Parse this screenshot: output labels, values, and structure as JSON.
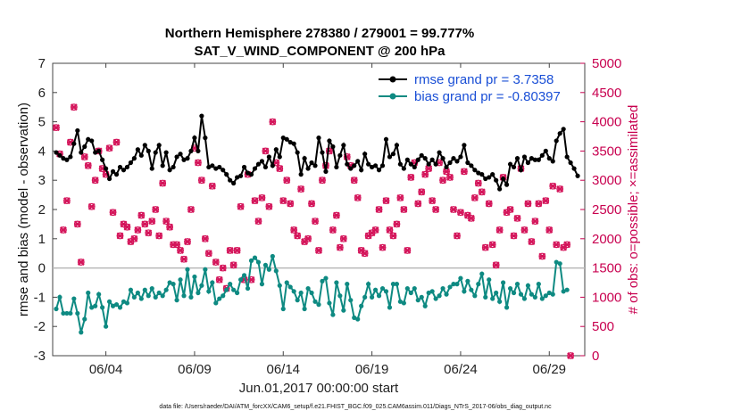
{
  "chart_data": {
    "type": "line",
    "title": "Northern Hemisphere 278380 / 279001 = 99.777%",
    "subtitle": "SAT_V_WIND_COMPONENT @ 200 hPa",
    "xlabel": "Jun.01,2017 00:00:00 start",
    "ylabel": "rmse and bias (model - observation)",
    "y2label": "# of obs: o=possible; ×=assimilated",
    "xlim": [
      0,
      30
    ],
    "ylim": [
      -3,
      7
    ],
    "y2lim": [
      0,
      5000
    ],
    "x_ticks": [
      3,
      8,
      13,
      18,
      23,
      28
    ],
    "x_tick_labels": [
      "06/04",
      "06/09",
      "06/14",
      "06/19",
      "06/24",
      "06/29"
    ],
    "y_ticks": [
      -3,
      -2,
      -1,
      0,
      1,
      2,
      3,
      4,
      5,
      6,
      7
    ],
    "y2_ticks": [
      0,
      500,
      1000,
      1500,
      2000,
      2500,
      3000,
      3500,
      4000,
      4500,
      5000
    ],
    "grid": false,
    "legend_position": "top-right",
    "series": [
      {
        "name": "rmse grand pr = 3.7358",
        "color": "#000000",
        "marker": "circle",
        "axis": "left",
        "values": [
          3.95,
          3.85,
          3.75,
          3.7,
          3.8,
          4.25,
          4.7,
          3.95,
          4.15,
          4.4,
          4.35,
          3.95,
          4.0,
          3.7,
          3.4,
          3.05,
          3.3,
          3.2,
          3.45,
          3.35,
          3.45,
          3.6,
          3.75,
          4.05,
          3.85,
          4.2,
          4.0,
          3.4,
          3.95,
          4.2,
          3.5,
          3.95,
          3.35,
          3.45,
          3.8,
          3.9,
          3.7,
          3.75,
          4.0,
          4.45,
          4.0,
          5.2,
          4.45,
          3.45,
          3.5,
          3.4,
          3.45,
          3.35,
          3.2,
          3.0,
          2.9,
          3.1,
          3.15,
          3.45,
          3.25,
          3.2,
          3.4,
          3.55,
          3.65,
          3.45,
          3.8,
          3.5,
          4.05,
          3.8,
          4.45,
          4.4,
          4.3,
          4.25,
          3.95,
          3.2,
          3.75,
          3.4,
          3.6,
          3.5,
          4.45,
          3.95,
          3.3,
          4.35,
          4.15,
          3.45,
          3.85,
          4.2,
          3.55,
          3.4,
          3.5,
          3.65,
          3.35,
          3.9,
          3.55,
          3.45,
          3.5,
          3.35,
          3.5,
          4.4,
          3.8,
          3.9,
          4.2,
          3.55,
          3.4,
          3.7,
          3.55,
          3.45,
          3.7,
          3.85,
          3.75,
          3.55,
          3.7,
          3.55,
          3.95,
          3.75,
          3.45,
          3.6,
          3.75,
          3.65,
          3.8,
          4.2,
          3.6,
          3.5,
          3.35,
          3.25,
          3.2,
          3.05,
          3.1,
          3.2,
          3.0,
          2.7,
          3.05,
          2.85,
          3.55,
          3.45,
          3.75,
          3.35,
          3.8,
          3.6,
          3.75,
          3.7,
          3.7,
          3.85,
          4.0,
          3.75,
          3.65,
          4.35,
          4.6,
          4.75,
          3.8,
          3.6,
          3.4,
          3.15
        ]
      },
      {
        "name": "bias grand pr = -0.80397",
        "color": "#0e8a82",
        "marker": "circle",
        "axis": "left",
        "values": [
          -1.4,
          -1.0,
          -1.55,
          -1.55,
          -1.55,
          -1.05,
          -1.55,
          -2.2,
          -1.75,
          -0.85,
          -1.35,
          -1.3,
          -0.9,
          -1.35,
          -2.0,
          -1.15,
          -1.3,
          -1.25,
          -1.35,
          -1.15,
          -1.2,
          -0.75,
          -1.0,
          -0.85,
          -1.05,
          -0.75,
          -0.95,
          -0.7,
          -1.0,
          -0.85,
          -0.95,
          -0.75,
          -0.5,
          -0.55,
          -1.1,
          -0.4,
          -0.95,
          -0.05,
          -1.0,
          -0.3,
          -0.85,
          -0.6,
          -0.05,
          -0.8,
          -0.5,
          -1.2,
          -1.05,
          -0.95,
          -0.75,
          -0.55,
          -0.75,
          -0.85,
          -0.4,
          -0.25,
          -0.7,
          0.25,
          0.35,
          0.2,
          -0.55,
          0.1,
          -0.05,
          0.4,
          -0.1,
          -0.6,
          -1.4,
          -0.5,
          -0.65,
          -0.8,
          -1.1,
          -0.85,
          -1.4,
          -0.7,
          -0.85,
          -1.15,
          -1.25,
          -0.45,
          -0.35,
          -1.2,
          -1.6,
          -0.5,
          -0.95,
          -1.45,
          -0.55,
          -1.1,
          -1.7,
          -1.75,
          -1.3,
          -1.0,
          -0.55,
          -1.0,
          -0.75,
          -0.95,
          -0.7,
          -0.8,
          -1.35,
          -0.55,
          -0.55,
          -1.15,
          -1.2,
          -0.7,
          -0.85,
          -0.7,
          -1.1,
          -1.0,
          -1.3,
          -0.85,
          -0.8,
          -1.05,
          -0.95,
          -0.7,
          -0.9,
          -0.65,
          -0.55,
          -0.55,
          -0.35,
          -0.8,
          -0.45,
          -0.75,
          -0.95,
          -0.55,
          -0.2,
          -1.0,
          -0.4,
          -1.05,
          -0.85,
          -1.15,
          -0.5,
          -1.35,
          -0.7,
          -0.85,
          -0.55,
          -0.9,
          -1.05,
          -0.6,
          -0.9,
          -1.0,
          -0.55,
          -1.05,
          -0.95,
          -0.85,
          -0.9,
          0.2,
          0.15,
          -0.8,
          -0.75
        ]
      },
      {
        "name": "possible",
        "color": "#d4145a",
        "marker": "circle-open",
        "axis": "right",
        "values": [
          3900,
          3450,
          2150,
          2650,
          3650,
          4250,
          2250,
          1600,
          3400,
          3250,
          2550,
          3000,
          3500,
          3200,
          3100,
          3550,
          2450,
          3650,
          2050,
          2250,
          2200,
          1950,
          2000,
          2150,
          2400,
          2250,
          2100,
          2300,
          2500,
          2050,
          2950,
          2300,
          2200,
          1900,
          1900,
          1800,
          1650,
          1950,
          2500,
          3550,
          3300,
          3000,
          2000,
          1750,
          2900,
          1600,
          1300,
          1500,
          1150,
          1800,
          1550,
          1800,
          2550,
          1300,
          3100,
          1300,
          2650,
          2300,
          2700,
          3500,
          2550,
          4000,
          3300,
          3200,
          2650,
          3000,
          2600,
          2150,
          2050,
          2850,
          1950,
          2000,
          2600,
          2300,
          1800,
          3000,
          3250,
          3500,
          2150,
          2400,
          1850,
          2000,
          3400,
          3250,
          3000,
          2700,
          1800,
          1750,
          2050,
          2100,
          2150,
          2500,
          1850,
          2650,
          2150,
          2050,
          2250,
          2700,
          2500,
          1800,
          3050,
          3300,
          2600,
          2800,
          3100,
          3200,
          2650,
          2500,
          3300,
          3000,
          3150,
          3050,
          2500,
          2050,
          2450,
          3150,
          2400,
          2350,
          2700,
          2950,
          2800,
          1850,
          2600,
          1900,
          1550,
          2150,
          3050,
          2450,
          2500,
          2050,
          2350,
          3200,
          2150,
          2600,
          1950,
          2300,
          2600,
          1700,
          2650,
          2150,
          2900,
          1900,
          2850,
          1850,
          1900,
          0
        ]
      },
      {
        "name": "assimilated",
        "color": "#d4145a",
        "marker": "cross",
        "axis": "right",
        "values": [
          3900,
          3450,
          2150,
          2650,
          3650,
          4250,
          2250,
          1600,
          3400,
          3250,
          2550,
          3000,
          3500,
          3200,
          3100,
          3550,
          2450,
          3650,
          2050,
          2250,
          2200,
          1950,
          2000,
          2150,
          2400,
          2250,
          2100,
          2300,
          2500,
          2050,
          2950,
          2300,
          2200,
          1900,
          1900,
          1800,
          1650,
          1950,
          2500,
          3550,
          3300,
          3000,
          2000,
          1750,
          2900,
          1600,
          1300,
          1500,
          1150,
          1800,
          1550,
          1800,
          2550,
          1300,
          3100,
          1300,
          2650,
          2300,
          2700,
          3500,
          2550,
          4000,
          3300,
          3200,
          2650,
          3000,
          2600,
          2150,
          2050,
          2850,
          1950,
          2000,
          2600,
          2300,
          1800,
          3000,
          3250,
          3500,
          2150,
          2400,
          1850,
          2000,
          3400,
          3250,
          3000,
          2700,
          1800,
          1750,
          2050,
          2100,
          2150,
          2500,
          1850,
          2650,
          2150,
          2050,
          2250,
          2700,
          2500,
          1800,
          3050,
          3300,
          2600,
          2800,
          3100,
          3200,
          2650,
          2500,
          3300,
          3000,
          3150,
          3050,
          2500,
          2050,
          2450,
          3150,
          2400,
          2350,
          2700,
          2950,
          2800,
          1850,
          2600,
          1900,
          1550,
          2150,
          3050,
          2450,
          2500,
          2050,
          2350,
          3200,
          2150,
          2600,
          1950,
          2300,
          2600,
          1700,
          2650,
          2150,
          2900,
          1900,
          2850,
          1850,
          1900,
          0
        ]
      }
    ],
    "footnote": "data file: /Users/raeder/DAI/ATM_forcXX/CAM6_setup/f.e21.FHIST_BGC.f09_025.CAM6assim.011/Diags_NTrS_2017-06/obs_diag_output.nc"
  }
}
